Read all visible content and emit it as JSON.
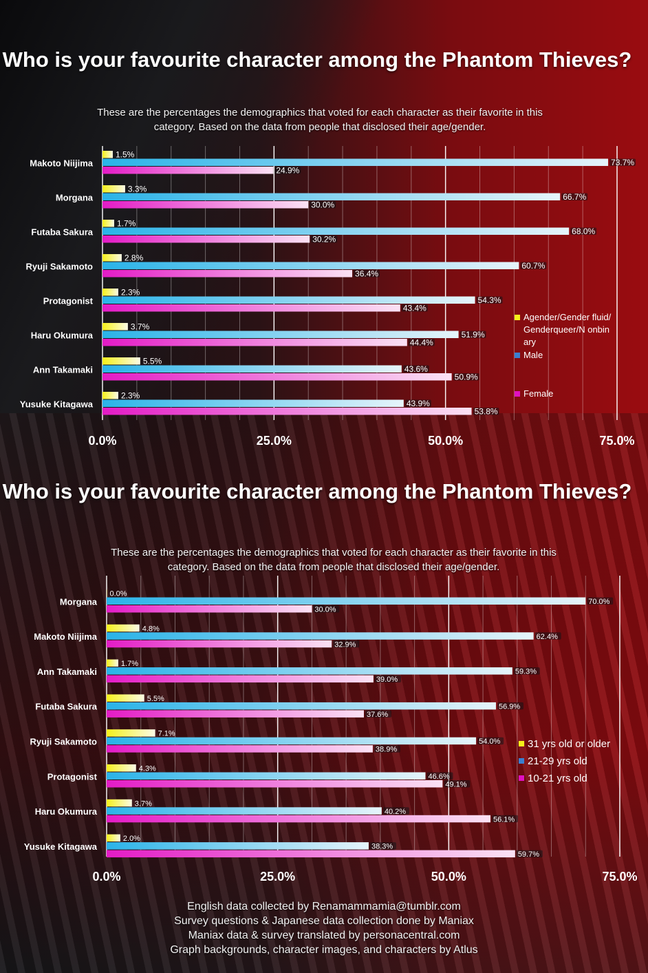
{
  "colors": {
    "agender_or_31plus": "#f5f01a",
    "male_or_21_29": "#2ab3e8",
    "female_or_10_21": "#e41bc6",
    "legend_male_21_29": "#3a7fd0",
    "legend_female_10_21": "#e010c0"
  },
  "chart_data": [
    {
      "type": "bar",
      "orientation": "horizontal",
      "title": "Who is your favourite character among the Phantom Thieves?",
      "subtitle": "These are the percentages the demographics that voted for each character as their favorite in this category. Based on the data from people that disclosed their age/gender.",
      "categories": [
        "Makoto Niijima",
        "Morgana",
        "Futaba Sakura",
        "Ryuji Sakamoto",
        "Protagonist",
        "Haru Okumura",
        "Ann Takamaki",
        "Yusuke Kitagawa"
      ],
      "series": [
        {
          "name": "Agender/Gender fluid/Genderqueer/N onbinary",
          "values": [
            1.5,
            3.3,
            1.7,
            2.8,
            2.3,
            3.7,
            5.5,
            2.3
          ],
          "labels": [
            "1.5%",
            "3.3%",
            "1.7%",
            "2.8%",
            "2.3%",
            "3.7%",
            "5.5%",
            "2.3%"
          ]
        },
        {
          "name": "Male",
          "values": [
            73.7,
            66.7,
            68.0,
            60.7,
            54.3,
            51.9,
            43.6,
            43.9
          ],
          "labels": [
            "73.7%",
            "66.7%",
            "68.0%",
            "60.7%",
            "54.3%",
            "51.9%",
            "43.6%",
            "43.9%"
          ]
        },
        {
          "name": "Female",
          "values": [
            24.9,
            30.0,
            30.2,
            36.4,
            43.4,
            44.4,
            50.9,
            53.8
          ],
          "labels": [
            "24.9%",
            "30.0%",
            "30.2%",
            "36.4%",
            "43.4%",
            "44.4%",
            "50.9%",
            "53.8%"
          ]
        }
      ],
      "xlim": [
        0,
        75
      ],
      "xticks": [
        "0.0%",
        "25.0%",
        "50.0%",
        "75.0%"
      ],
      "grid": true,
      "legend_position": "right"
    },
    {
      "type": "bar",
      "orientation": "horizontal",
      "title": "Who is your favourite character among the Phantom Thieves?",
      "subtitle": "These are the percentages the demographics that voted for each character as their favorite in this category. Based on the data from people that disclosed their age/gender.",
      "categories": [
        "Morgana",
        "Makoto Niijima",
        "Ann Takamaki",
        "Futaba Sakura",
        "Ryuji Sakamoto",
        "Protagonist",
        "Haru Okumura",
        "Yusuke Kitagawa"
      ],
      "series": [
        {
          "name": "31 yrs old or older",
          "values": [
            0.0,
            4.8,
            1.7,
            5.5,
            7.1,
            4.3,
            3.7,
            2.0
          ],
          "labels": [
            "0.0%",
            "4.8%",
            "1.7%",
            "5.5%",
            "7.1%",
            "4.3%",
            "3.7%",
            "2.0%"
          ]
        },
        {
          "name": "21-29 yrs old",
          "values": [
            70.0,
            62.4,
            59.3,
            56.9,
            54.0,
            46.6,
            40.2,
            38.3
          ],
          "labels": [
            "70.0%",
            "62.4%",
            "59.3%",
            "56.9%",
            "54.0%",
            "46.6%",
            "40.2%",
            "38.3%"
          ]
        },
        {
          "name": "10-21 yrs old",
          "values": [
            30.0,
            32.9,
            39.0,
            37.6,
            38.9,
            49.1,
            56.1,
            59.7
          ],
          "labels": [
            "30.0%",
            "32.9%",
            "39.0%",
            "37.6%",
            "38.9%",
            "49.1%",
            "56.1%",
            "59.7%"
          ]
        }
      ],
      "xlim": [
        0,
        75
      ],
      "xticks": [
        "0.0%",
        "25.0%",
        "50.0%",
        "75.0%"
      ],
      "grid": true,
      "legend_position": "right"
    }
  ],
  "footer": {
    "line1": "English data collected by Renamammamia@tumblr.com",
    "line2": "Survey questions & Japanese data collection done by Maniax",
    "line3": "Maniax data & survey translated by personacentral.com",
    "line4": "Graph backgrounds, character images, and characters by Atlus"
  }
}
